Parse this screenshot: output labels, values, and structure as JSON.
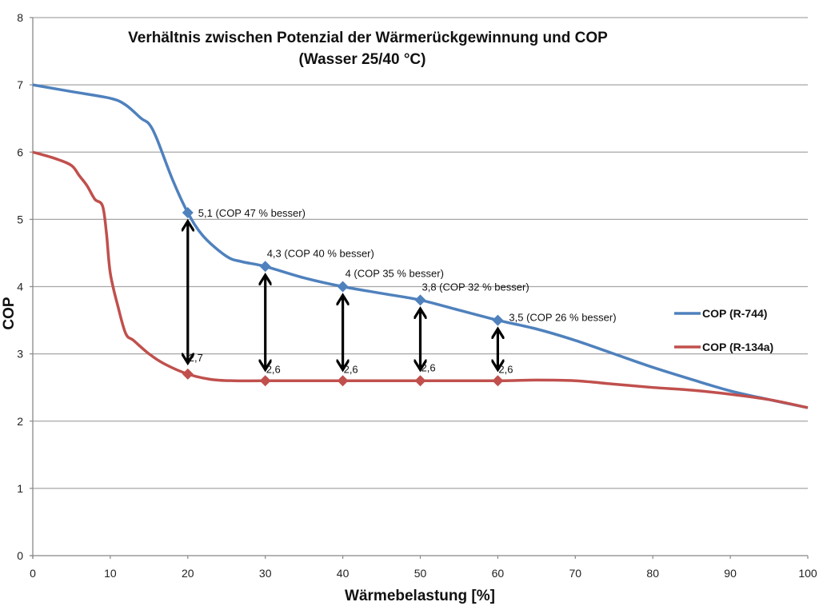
{
  "chart_data": {
    "type": "line",
    "title": "Verhältnis zwischen Potenzial der Wärmerückgewinnung und COP",
    "subtitle": "(Wasser 25/40 °C)",
    "xlabel": "Wärmebelastung [%]",
    "ylabel": "COP",
    "xlim": [
      0,
      100
    ],
    "ylim": [
      0,
      8
    ],
    "x_ticks": [
      "0",
      "10",
      "20",
      "30",
      "40",
      "50",
      "60",
      "70",
      "80",
      "90",
      "100"
    ],
    "y_ticks": [
      "0",
      "1",
      "2",
      "3",
      "4",
      "5",
      "6",
      "7",
      "8"
    ],
    "grid": "horizontal",
    "legend_position": "right",
    "series": [
      {
        "name": "COP (R-744)",
        "color": "#4f81bd",
        "curve": [
          [
            0,
            7.0
          ],
          [
            5,
            6.9
          ],
          [
            10,
            6.8
          ],
          [
            12,
            6.7
          ],
          [
            14,
            6.5
          ],
          [
            15,
            6.42
          ],
          [
            16,
            6.2
          ],
          [
            18,
            5.6
          ],
          [
            20,
            5.1
          ],
          [
            22,
            4.75
          ],
          [
            25,
            4.45
          ],
          [
            27,
            4.37
          ],
          [
            30,
            4.3
          ],
          [
            35,
            4.13
          ],
          [
            40,
            4.0
          ],
          [
            45,
            3.9
          ],
          [
            50,
            3.8
          ],
          [
            55,
            3.65
          ],
          [
            60,
            3.5
          ],
          [
            65,
            3.37
          ],
          [
            70,
            3.2
          ],
          [
            75,
            3.0
          ],
          [
            80,
            2.8
          ],
          [
            85,
            2.62
          ],
          [
            90,
            2.45
          ],
          [
            95,
            2.32
          ],
          [
            100,
            2.2
          ]
        ],
        "markers": [
          {
            "x": 20,
            "y": 5.1,
            "label": "5,1  (COP 47 % besser)"
          },
          {
            "x": 30,
            "y": 4.3,
            "label": "4,3  (COP 40 % besser)"
          },
          {
            "x": 40,
            "y": 4.0,
            "label": "4  (COP 35 % besser)"
          },
          {
            "x": 50,
            "y": 3.8,
            "label": "3,8  (COP 32 % besser)"
          },
          {
            "x": 60,
            "y": 3.5,
            "label": "3,5 (COP 26 % besser)"
          }
        ]
      },
      {
        "name": "COP (R-134a)",
        "color": "#c0504d",
        "curve": [
          [
            0,
            6.0
          ],
          [
            3,
            5.9
          ],
          [
            5,
            5.8
          ],
          [
            6,
            5.65
          ],
          [
            7,
            5.5
          ],
          [
            8,
            5.3
          ],
          [
            9,
            5.2
          ],
          [
            9.5,
            4.8
          ],
          [
            10,
            4.2
          ],
          [
            11,
            3.7
          ],
          [
            12,
            3.3
          ],
          [
            13,
            3.2
          ],
          [
            15,
            3.0
          ],
          [
            17,
            2.85
          ],
          [
            20,
            2.7
          ],
          [
            23,
            2.62
          ],
          [
            26,
            2.6
          ],
          [
            30,
            2.6
          ],
          [
            40,
            2.6
          ],
          [
            50,
            2.6
          ],
          [
            60,
            2.6
          ],
          [
            65,
            2.61
          ],
          [
            70,
            2.6
          ],
          [
            75,
            2.55
          ],
          [
            80,
            2.5
          ],
          [
            85,
            2.46
          ],
          [
            90,
            2.4
          ],
          [
            95,
            2.32
          ],
          [
            100,
            2.2
          ]
        ],
        "markers": [
          {
            "x": 20,
            "y": 2.7,
            "label": "2,7"
          },
          {
            "x": 30,
            "y": 2.6,
            "label": "2,6"
          },
          {
            "x": 40,
            "y": 2.6,
            "label": "2,6"
          },
          {
            "x": 50,
            "y": 2.6,
            "label": "2,6"
          },
          {
            "x": 60,
            "y": 2.6,
            "label": "2,6"
          }
        ]
      }
    ],
    "annotations": {
      "double_arrows": [
        {
          "x": 20,
          "from": 2.7,
          "to": 5.1
        },
        {
          "x": 30,
          "from": 2.6,
          "to": 4.3
        },
        {
          "x": 40,
          "from": 2.6,
          "to": 4.0
        },
        {
          "x": 50,
          "from": 2.6,
          "to": 3.8
        },
        {
          "x": 60,
          "from": 2.6,
          "to": 3.5
        }
      ],
      "arrow_color": "#000000"
    },
    "gridline_color": "#a6a6a6"
  }
}
